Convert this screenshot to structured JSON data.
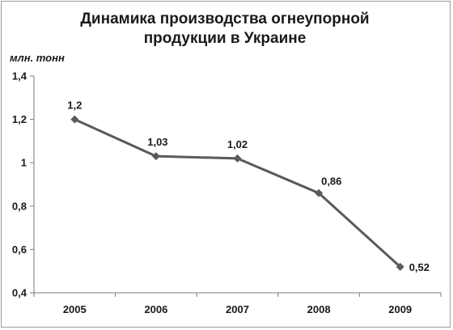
{
  "chart_data": {
    "type": "line",
    "title_lines": [
      "Динамика производства огнеупорной",
      "продукции в Украине"
    ],
    "ylabel": "млн. тонн",
    "xlabel": "",
    "categories": [
      "2005",
      "2006",
      "2007",
      "2008",
      "2009"
    ],
    "series": [
      {
        "values": [
          1.2,
          1.03,
          1.02,
          0.86,
          0.52
        ],
        "value_labels": [
          "1,2",
          "1,03",
          "1,02",
          "0,86",
          "0,52"
        ]
      }
    ],
    "ylim": [
      0.4,
      1.4
    ],
    "yticks": [
      0.4,
      0.6,
      0.8,
      1.0,
      1.2,
      1.4
    ],
    "ytick_labels": [
      "0,4",
      "0,6",
      "0,8",
      "1",
      "1,2",
      "1,4"
    ],
    "grid": false,
    "legend": "none",
    "colors": {
      "line": "#5a5a5a",
      "marker": "#5a5a5a",
      "axis": "#7a7a7a",
      "text": "#1a1a1a"
    }
  }
}
